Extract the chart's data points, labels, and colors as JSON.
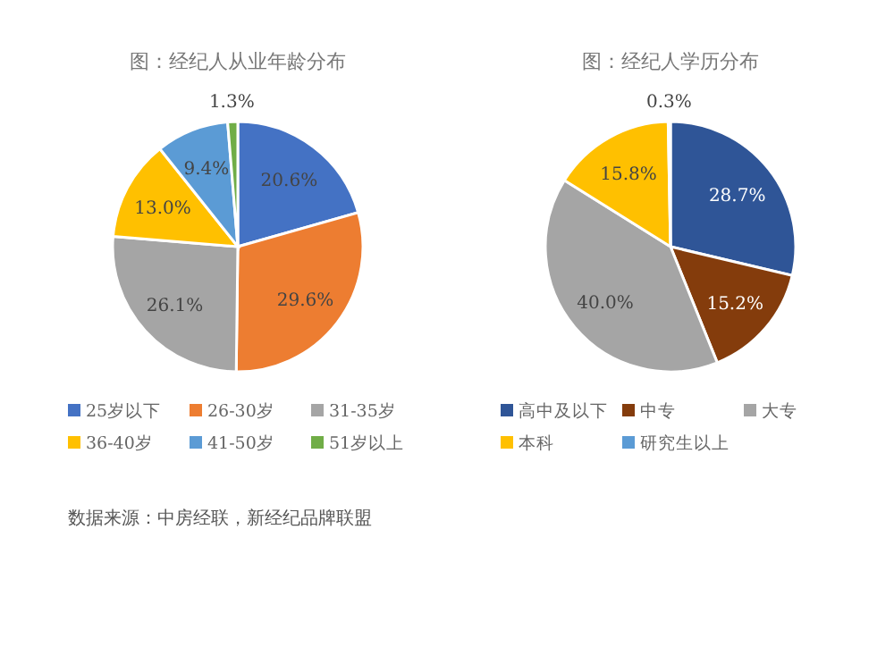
{
  "chart_data": [
    {
      "type": "pie",
      "title": "图：经纪人从业年龄分布",
      "categories": [
        "25岁以下",
        "26-30岁",
        "31-35岁",
        "36-40岁",
        "41-50岁",
        "51岁以上"
      ],
      "values": [
        20.6,
        29.6,
        26.1,
        13.0,
        9.4,
        1.3
      ],
      "colors": [
        "#4472c4",
        "#ed7d31",
        "#a5a5a5",
        "#ffc000",
        "#5b9bd5",
        "#70ad47"
      ],
      "value_labels": [
        "20.6%",
        "29.6%",
        "26.1%",
        "13.0%",
        "9.4%",
        "1.3%"
      ],
      "legend": "bottom",
      "annotations": [
        "数据来源：中房经联，新经纪品牌联盟"
      ]
    },
    {
      "type": "pie",
      "title": "图：经纪人学历分布",
      "categories": [
        "高中及以下",
        "中专",
        "大专",
        "本科",
        "研究生以上"
      ],
      "values": [
        28.7,
        15.2,
        40.0,
        15.8,
        0.3
      ],
      "colors": [
        "#2f5597",
        "#843c0c",
        "#a5a5a5",
        "#ffc000",
        "#5b9bd5"
      ],
      "value_labels": [
        "28.7%",
        "15.2%",
        "40.0%",
        "15.8%",
        "0.3%"
      ],
      "legend": "bottom"
    }
  ]
}
